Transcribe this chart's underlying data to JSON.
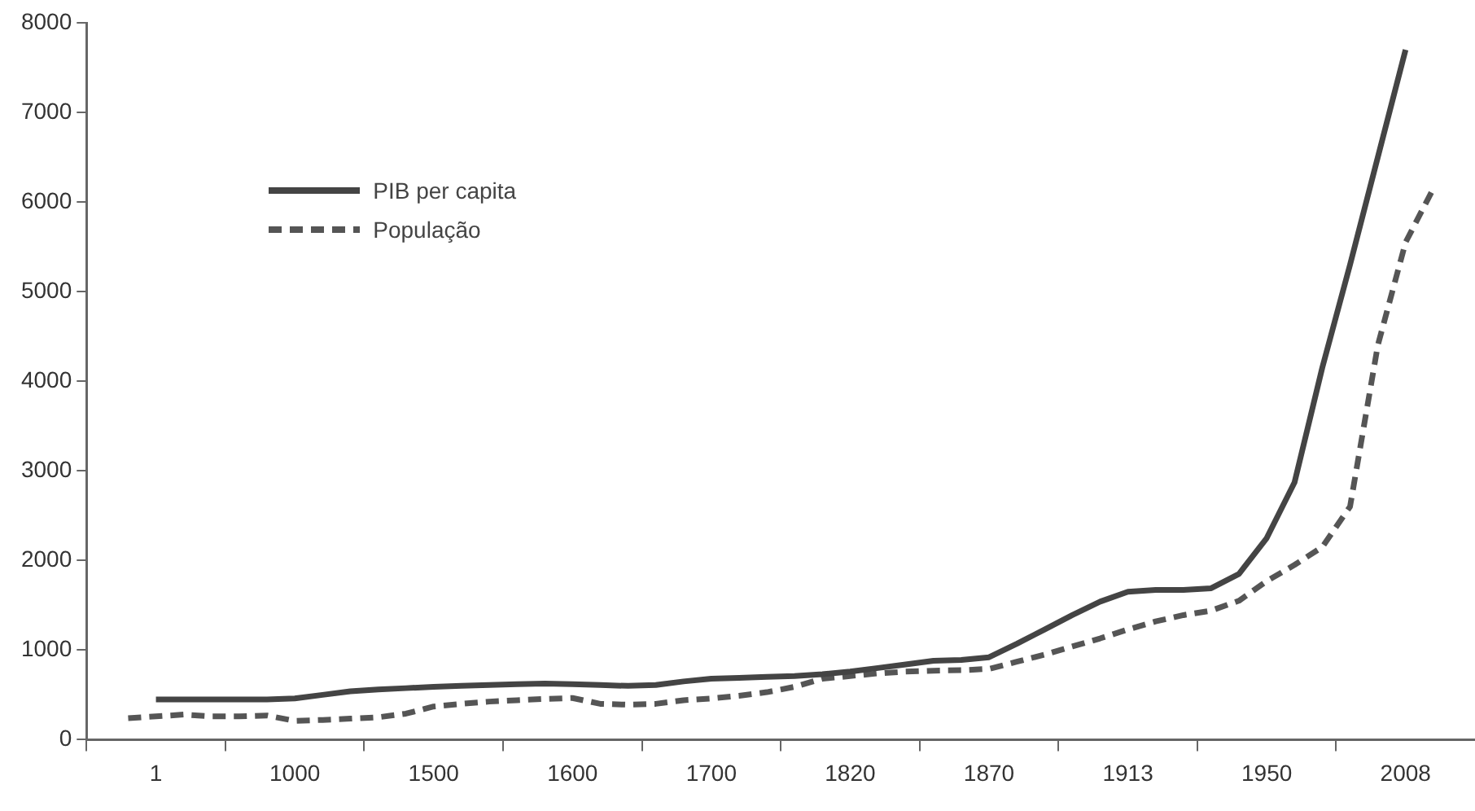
{
  "chart_data": {
    "type": "line",
    "categories": [
      null,
      null,
      "1",
      null,
      null,
      null,
      null,
      "1000",
      null,
      null,
      null,
      null,
      "1500",
      null,
      null,
      null,
      null,
      "1600",
      null,
      null,
      null,
      null,
      "1700",
      null,
      null,
      null,
      null,
      "1820",
      null,
      null,
      null,
      null,
      "1870",
      null,
      null,
      null,
      null,
      "1913",
      null,
      null,
      null,
      null,
      "1950",
      null,
      null,
      null,
      null,
      "2008",
      null,
      null
    ],
    "series": [
      {
        "name": "PIB per capita",
        "color": "#444444",
        "line_style": "solid",
        "values": [
          null,
          null,
          450,
          450,
          450,
          450,
          450,
          460,
          500,
          540,
          560,
          575,
          590,
          600,
          610,
          620,
          625,
          620,
          610,
          600,
          610,
          650,
          680,
          690,
          700,
          710,
          730,
          760,
          800,
          840,
          880,
          890,
          920,
          1070,
          1230,
          1390,
          1540,
          1650,
          1670,
          1670,
          1690,
          1850,
          2250,
          2870,
          4150,
          5300,
          6500,
          7700,
          null,
          null
        ]
      },
      {
        "name": "População",
        "color": "#555555",
        "line_style": "dashed",
        "values": [
          null,
          240,
          260,
          280,
          260,
          260,
          270,
          210,
          220,
          235,
          250,
          290,
          370,
          400,
          425,
          440,
          455,
          465,
          400,
          390,
          400,
          440,
          460,
          490,
          530,
          590,
          680,
          710,
          740,
          760,
          770,
          775,
          790,
          870,
          950,
          1040,
          1130,
          1230,
          1320,
          1390,
          1440,
          1550,
          1770,
          1950,
          2150,
          2600,
          4400,
          5550,
          6150,
          null
        ]
      }
    ],
    "ylim": [
      0,
      8000
    ],
    "yticks": [
      0,
      1000,
      2000,
      3000,
      4000,
      5000,
      6000,
      7000,
      8000
    ],
    "grid": false,
    "legend": "top left",
    "marker": "none"
  }
}
